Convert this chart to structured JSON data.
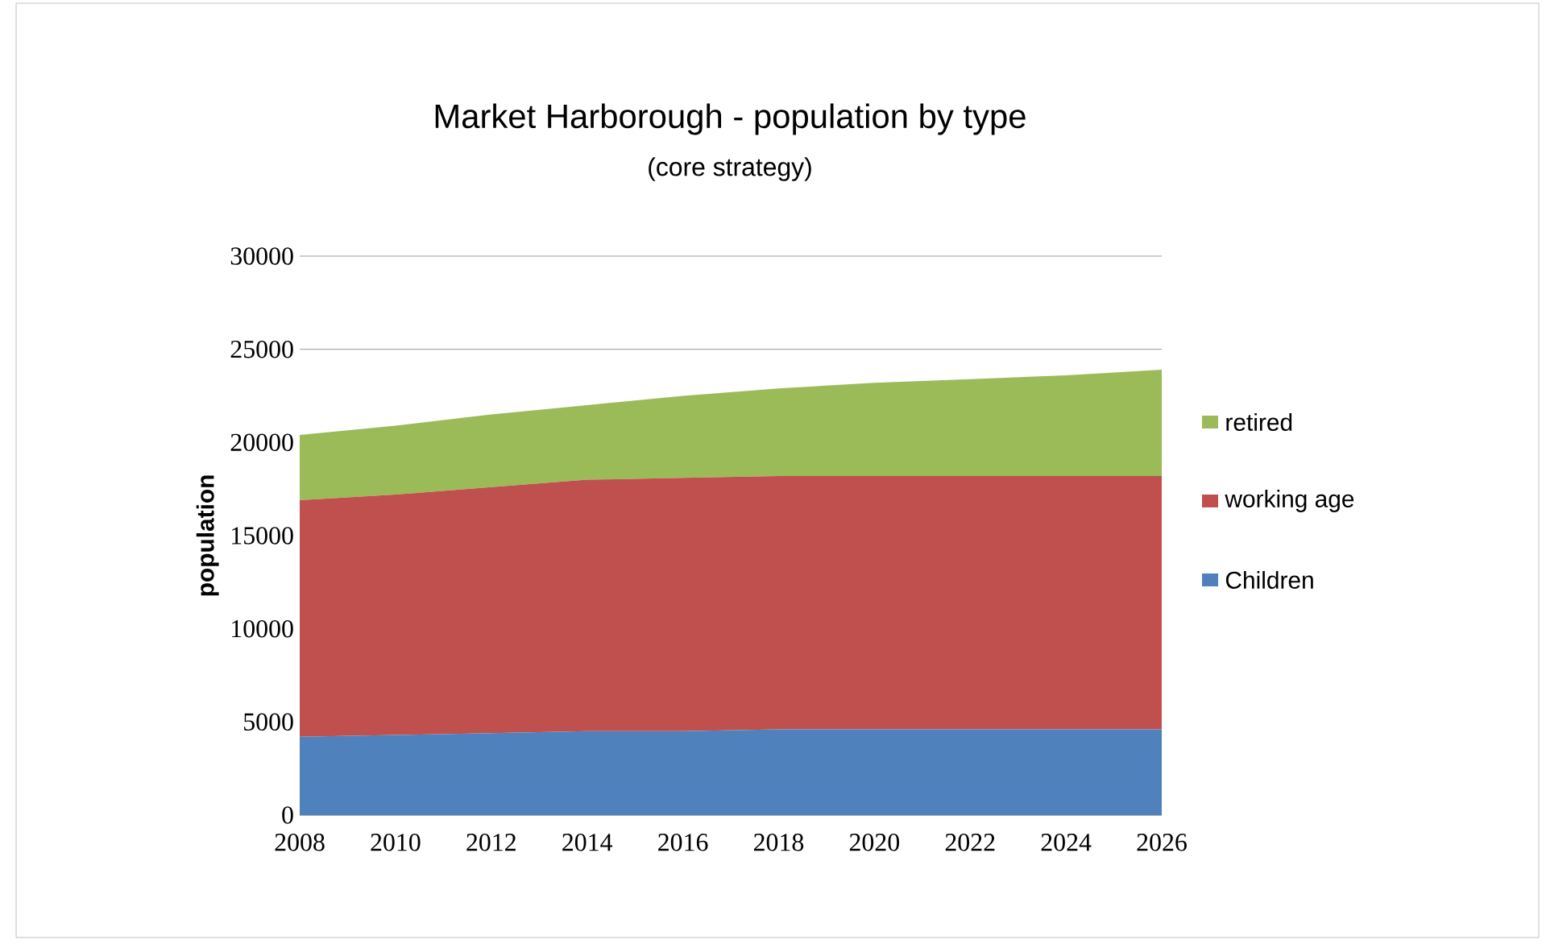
{
  "chart_data": {
    "type": "area",
    "title": "Market Harborough - population by type",
    "subtitle": "(core strategy)",
    "ylabel": "population",
    "categories": [
      "2008",
      "2010",
      "2012",
      "2014",
      "2016",
      "2018",
      "2020",
      "2022",
      "2024",
      "2026"
    ],
    "stacked": true,
    "series": [
      {
        "name": "Children",
        "color": "#4f81bd",
        "values": [
          4200,
          4300,
          4400,
          4500,
          4500,
          4600,
          4600,
          4600,
          4600,
          4600
        ]
      },
      {
        "name": "working age",
        "color": "#c0504d",
        "values": [
          12700,
          12900,
          13200,
          13500,
          13600,
          13600,
          13600,
          13600,
          13600,
          13600
        ]
      },
      {
        "name": "retired",
        "color": "#9bbb59",
        "values": [
          3500,
          3700,
          3900,
          4000,
          4400,
          4700,
          5000,
          5200,
          5400,
          5700
        ]
      }
    ],
    "ylim": [
      0,
      30000
    ],
    "yticks": [
      0,
      5000,
      10000,
      15000,
      20000,
      25000,
      30000
    ],
    "grid": "y",
    "legend": "right"
  }
}
